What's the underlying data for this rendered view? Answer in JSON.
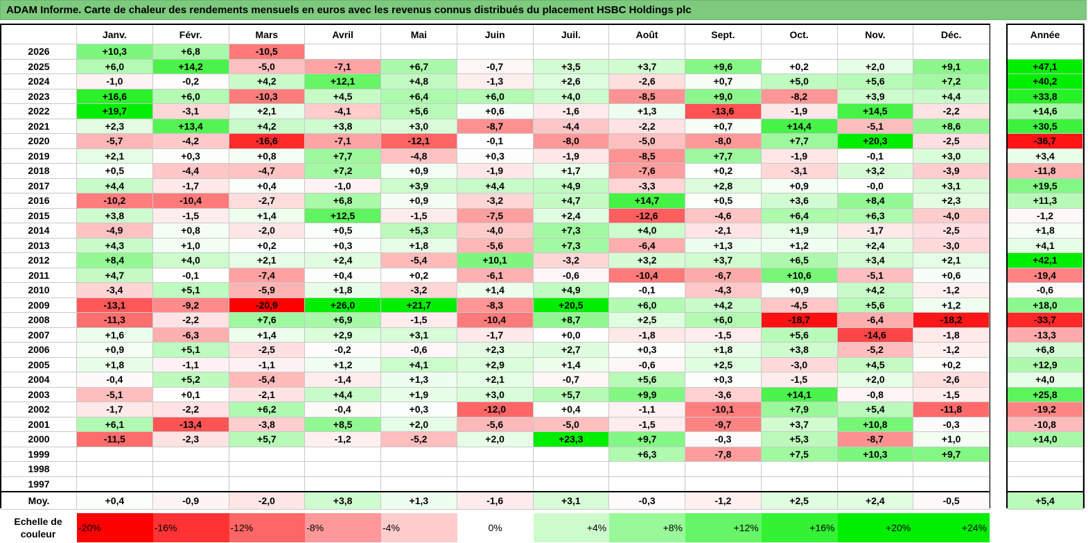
{
  "title": "ADAM Informe. Carte de chaleur des rendements mensuels en euros avec les revenus connus distribués du placement HSBC Holdings plc",
  "chart_data": {
    "type": "heatmap",
    "title": "ADAM Informe. Carte de chaleur des rendements mensuels en euros avec les revenus connus distribués du placement HSBC Holdings plc",
    "columns": [
      "Janv.",
      "Févr.",
      "Mars",
      "Avril",
      "Mai",
      "Juin",
      "Juil.",
      "Août",
      "Sept.",
      "Oct.",
      "Nov.",
      "Déc."
    ],
    "year_header": "Année",
    "rows": [
      {
        "year": "2026",
        "values": [
          "+10,3",
          "+6,8",
          "-10,5",
          "",
          "",
          "",
          "",
          "",
          "",
          "",
          "",
          ""
        ],
        "annual": ""
      },
      {
        "year": "2025",
        "values": [
          "+6,0",
          "+14,2",
          "-5,0",
          "-7,1",
          "+6,7",
          "-0,7",
          "+3,5",
          "+3,7",
          "+9,6",
          "+0,2",
          "+2,0",
          "+9,1"
        ],
        "annual": "+47,1"
      },
      {
        "year": "2024",
        "values": [
          "-1,0",
          "-0,2",
          "+4,2",
          "+12,1",
          "+4,8",
          "-1,3",
          "+2,6",
          "-2,6",
          "+0,7",
          "+5,0",
          "+5,6",
          "+7,2"
        ],
        "annual": "+40,2"
      },
      {
        "year": "2023",
        "values": [
          "+16,6",
          "+6,0",
          "-10,3",
          "+4,5",
          "+6,4",
          "+6,0",
          "+4,0",
          "-8,5",
          "+9,0",
          "-8,2",
          "+3,9",
          "+4,4"
        ],
        "annual": "+33,8"
      },
      {
        "year": "2022",
        "values": [
          "+19,7",
          "-3,1",
          "+2,1",
          "-4,1",
          "+5,6",
          "+0,6",
          "-1,6",
          "+1,3",
          "-13,6",
          "-1,9",
          "+14,5",
          "-2,2"
        ],
        "annual": "+14,6"
      },
      {
        "year": "2021",
        "values": [
          "+2,3",
          "+13,4",
          "+4,2",
          "+3,8",
          "+3,0",
          "-8,7",
          "-4,4",
          "-2,2",
          "+0,7",
          "+14,4",
          "-5,1",
          "+8,6"
        ],
        "annual": "+30,5"
      },
      {
        "year": "2020",
        "values": [
          "-5,7",
          "-4,2",
          "-16,6",
          "-7,1",
          "-12,1",
          "-0,1",
          "-8,0",
          "-5,0",
          "-8,0",
          "+7,7",
          "+20,3",
          "-2,5"
        ],
        "annual": "-36,7"
      },
      {
        "year": "2019",
        "values": [
          "+2,1",
          "+0,3",
          "+0,8",
          "+7,7",
          "-4,8",
          "+0,3",
          "-1,9",
          "-8,5",
          "+7,7",
          "-1,9",
          "-0,1",
          "+3,0"
        ],
        "annual": "+3,4"
      },
      {
        "year": "2018",
        "values": [
          "+0,5",
          "-4,4",
          "-4,7",
          "+7,2",
          "+0,9",
          "-1,9",
          "+1,7",
          "-7,6",
          "+0,2",
          "-3,1",
          "+3,2",
          "-3,9"
        ],
        "annual": "-11,8"
      },
      {
        "year": "2017",
        "values": [
          "+4,4",
          "-1,7",
          "+0,4",
          "-1,0",
          "+3,9",
          "+4,4",
          "+4,9",
          "-3,3",
          "+2,8",
          "+0,9",
          "-0,0",
          "+3,1"
        ],
        "annual": "+19,5"
      },
      {
        "year": "2016",
        "values": [
          "-10,2",
          "-10,4",
          "-2,7",
          "+6,8",
          "+0,9",
          "-3,2",
          "+4,7",
          "+14,7",
          "+0,5",
          "+3,6",
          "+8,4",
          "+2,3"
        ],
        "annual": "+11,3"
      },
      {
        "year": "2015",
        "values": [
          "+3,8",
          "-1,5",
          "+1,4",
          "+12,5",
          "-1,5",
          "-7,5",
          "+2,4",
          "-12,6",
          "-4,6",
          "+6,4",
          "+6,3",
          "-4,0"
        ],
        "annual": "-1,2"
      },
      {
        "year": "2014",
        "values": [
          "-4,9",
          "+0,8",
          "-2,0",
          "+0,5",
          "+5,3",
          "-4,0",
          "+7,3",
          "+4,0",
          "-2,1",
          "+1,9",
          "-1,7",
          "-2,5"
        ],
        "annual": "+1,8"
      },
      {
        "year": "2013",
        "values": [
          "+4,3",
          "+1,0",
          "+0,2",
          "+0,3",
          "+1,8",
          "-5,6",
          "+7,3",
          "-6,4",
          "+1,3",
          "+1,2",
          "+2,4",
          "-3,0"
        ],
        "annual": "+4,1"
      },
      {
        "year": "2012",
        "values": [
          "+8,4",
          "+4,0",
          "+2,1",
          "+2,4",
          "-5,4",
          "+10,1",
          "-3,2",
          "+3,2",
          "+3,7",
          "+6,5",
          "+3,4",
          "+2,1"
        ],
        "annual": "+42,1"
      },
      {
        "year": "2011",
        "values": [
          "+4,7",
          "-0,1",
          "-7,4",
          "+0,4",
          "+0,2",
          "-6,1",
          "-0,6",
          "-10,4",
          "-6,7",
          "+10,6",
          "-5,1",
          "+0,6"
        ],
        "annual": "-19,4"
      },
      {
        "year": "2010",
        "values": [
          "-3,4",
          "+5,1",
          "-5,9",
          "+1,8",
          "-3,2",
          "+1,4",
          "+4,9",
          "-0,1",
          "-4,3",
          "+0,9",
          "+4,2",
          "-1,2"
        ],
        "annual": "-0,6"
      },
      {
        "year": "2009",
        "values": [
          "-13,1",
          "-9,2",
          "-20,9",
          "+26,0",
          "+21,7",
          "-8,3",
          "+20,5",
          "+6,0",
          "+4,2",
          "-4,5",
          "+5,6",
          "+1,2"
        ],
        "annual": "+18,0"
      },
      {
        "year": "2008",
        "values": [
          "-11,3",
          "-2,2",
          "+7,6",
          "+6,9",
          "-1,5",
          "-10,4",
          "+8,7",
          "+2,5",
          "+6,0",
          "-18,7",
          "-6,4",
          "-18,2"
        ],
        "annual": "-33,7"
      },
      {
        "year": "2007",
        "values": [
          "+1,6",
          "-6,3",
          "+1,4",
          "+2,9",
          "+3,1",
          "-1,7",
          "+0,0",
          "-1,8",
          "-1,5",
          "+5,6",
          "-14,6",
          "-1,8"
        ],
        "annual": "-13,3"
      },
      {
        "year": "2006",
        "values": [
          "+0,9",
          "+5,1",
          "-2,5",
          "-0,2",
          "-0,6",
          "+2,3",
          "+2,7",
          "+0,3",
          "+1,8",
          "+3,8",
          "-5,2",
          "-1,2"
        ],
        "annual": "+6,8"
      },
      {
        "year": "2005",
        "values": [
          "+1,8",
          "-1,1",
          "-1,1",
          "+1,2",
          "+4,1",
          "+2,9",
          "+1,4",
          "-0,6",
          "+2,5",
          "-3,0",
          "+4,5",
          "+0,2"
        ],
        "annual": "+12,9"
      },
      {
        "year": "2004",
        "values": [
          "-0,4",
          "+5,2",
          "-5,4",
          "-1,4",
          "+1,3",
          "+2,1",
          "-0,7",
          "+5,6",
          "+0,3",
          "-1,5",
          "+2,0",
          "-2,6"
        ],
        "annual": "+4,0"
      },
      {
        "year": "2003",
        "values": [
          "-5,1",
          "+0,1",
          "-2,1",
          "+4,4",
          "+1,9",
          "+3,0",
          "+5,7",
          "+9,9",
          "-3,6",
          "+14,1",
          "-0,8",
          "-1,5"
        ],
        "annual": "+25,8"
      },
      {
        "year": "2002",
        "values": [
          "-1,7",
          "-2,2",
          "+6,2",
          "-0,4",
          "+0,3",
          "-12,0",
          "+0,4",
          "-1,1",
          "-10,1",
          "+7,9",
          "+5,4",
          "-11,8"
        ],
        "annual": "-19,2"
      },
      {
        "year": "2001",
        "values": [
          "+6,1",
          "-13,4",
          "-3,8",
          "+8,5",
          "+2,0",
          "-5,6",
          "-5,0",
          "-1,5",
          "-9,7",
          "+3,7",
          "+10,8",
          "-0,3"
        ],
        "annual": "-10,8"
      },
      {
        "year": "2000",
        "values": [
          "-11,5",
          "-2,3",
          "+5,7",
          "-1,2",
          "-5,2",
          "+2,0",
          "+23,3",
          "+9,7",
          "-0,3",
          "+5,3",
          "-8,7",
          "+1,0"
        ],
        "annual": "+14,0"
      },
      {
        "year": "1999",
        "values": [
          "",
          "",
          "",
          "",
          "",
          "",
          "",
          "+6,3",
          "-7,8",
          "+7,5",
          "+10,3",
          "+9,7"
        ],
        "annual": ""
      },
      {
        "year": "1998",
        "values": [
          "",
          "",
          "",
          "",
          "",
          "",
          "",
          "",
          "",
          "",
          "",
          ""
        ],
        "annual": ""
      },
      {
        "year": "1997",
        "values": [
          "",
          "",
          "",
          "",
          "",
          "",
          "",
          "",
          "",
          "",
          "",
          ""
        ],
        "annual": ""
      }
    ],
    "average": {
      "label": "Moy.",
      "values": [
        "+0,4",
        "-0,9",
        "-2,0",
        "+3,8",
        "+1,3",
        "-1,6",
        "+3,1",
        "-0,3",
        "-1,2",
        "+2,5",
        "+2,4",
        "-0,5"
      ],
      "annual": "+5,4"
    },
    "scale": {
      "label": "Echelle de couleur",
      "steps": [
        {
          "label": "-20%",
          "value": -20
        },
        {
          "label": "-16%",
          "value": -16
        },
        {
          "label": "-12%",
          "value": -12
        },
        {
          "label": "-8%",
          "value": -8
        },
        {
          "label": "-4%",
          "value": -4
        },
        {
          "label": "0%",
          "value": 0
        },
        {
          "label": "+4%",
          "value": 4
        },
        {
          "label": "+8%",
          "value": 8
        },
        {
          "label": "+12%",
          "value": 12
        },
        {
          "label": "+16%",
          "value": 16
        },
        {
          "label": "+20%",
          "value": 20
        },
        {
          "label": "+24%",
          "value": 24
        }
      ]
    },
    "colors": {
      "negative_max": "#ff0000",
      "neutral": "#ffffff",
      "positive_max": "#00ee00"
    }
  }
}
